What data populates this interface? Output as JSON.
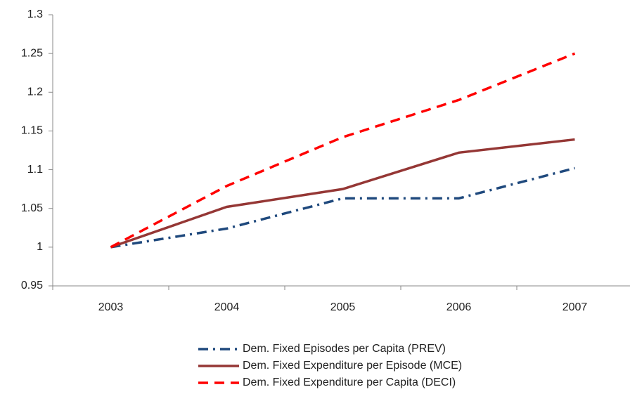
{
  "chart_data": {
    "type": "line",
    "categories": [
      "2003",
      "2004",
      "2005",
      "2006",
      "2007"
    ],
    "series": [
      {
        "name": "Dem. Fixed Episodes per Capita (PREV)",
        "color": "#1f497d",
        "dash": "dashdot",
        "values": [
          1,
          1.024,
          1.063,
          1.063,
          1.102
        ]
      },
      {
        "name": "Dem. Fixed Expenditure per Episode (MCE)",
        "color": "#953735",
        "dash": "solid",
        "values": [
          1,
          1.052,
          1.075,
          1.122,
          1.139
        ]
      },
      {
        "name": "Dem. Fixed Expenditure per Capita (DECI)",
        "color": "#ff0000",
        "dash": "dash",
        "values": [
          1,
          1.079,
          1.142,
          1.19,
          1.25
        ]
      }
    ],
    "ylim": [
      0.95,
      1.3
    ],
    "yticks": [
      0.95,
      1,
      1.05,
      1.1,
      1.15,
      1.2,
      1.25,
      1.3
    ],
    "grid": false,
    "legend": "bottom"
  }
}
